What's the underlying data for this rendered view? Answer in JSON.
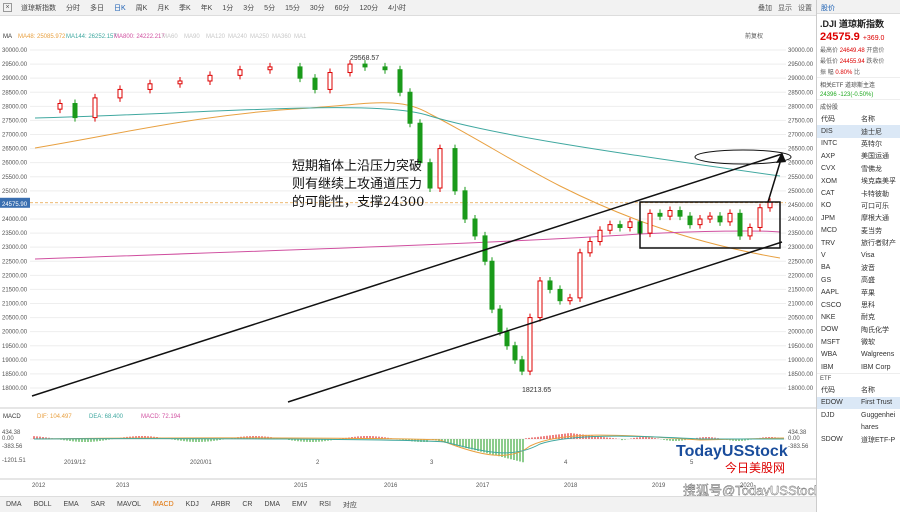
{
  "toolbar": {
    "close": "×",
    "tabs": [
      "道琼斯指数",
      "分时",
      "多日",
      "日K",
      "周K",
      "月K",
      "季K",
      "年K",
      "1分",
      "3分",
      "5分",
      "15分",
      "30分",
      "60分",
      "120分",
      "4小时"
    ],
    "active_tab": 3,
    "right": [
      "叠加",
      "显示",
      "设置"
    ]
  },
  "chart": {
    "ma_label": "MA",
    "ma_legend": [
      {
        "text": "MA48: 25085.972",
        "color": "#e8a040"
      },
      {
        "text": "MA144: 26252.157",
        "color": "#40a8a0"
      },
      {
        "text": "MA800: 24222.217",
        "color": "#d050a0"
      },
      {
        "text": "MA60",
        "color": "#c8c8c8"
      },
      {
        "text": "MA90",
        "color": "#c8c8c8"
      },
      {
        "text": "MA120",
        "color": "#c8c8c8"
      },
      {
        "text": "MA240",
        "color": "#c8c8c8"
      },
      {
        "text": "MA250",
        "color": "#c8c8c8"
      },
      {
        "text": "MA360",
        "color": "#c8c8c8"
      },
      {
        "text": "MA1",
        "color": "#c8c8c8"
      }
    ],
    "adjust_label": "前复权",
    "price_labels": [
      "30000.00",
      "29500.00",
      "29000.00",
      "28500.00",
      "28000.00",
      "27500.00",
      "27000.00",
      "26500.00",
      "26000.00",
      "25500.00",
      "25000.00",
      "24500.00",
      "24000.00",
      "23500.00",
      "23000.00",
      "22500.00",
      "22000.00",
      "21500.00",
      "21000.00",
      "20500.00",
      "20000.00",
      "19500.00",
      "19000.00",
      "18500.00",
      "18000.00"
    ],
    "current_price_tag": "24575.90",
    "high_label": "29568.57",
    "low_label": "18213.65",
    "annotation": [
      "短期箱体上沿压力突破",
      "则有继续上攻通道压力",
      "的可能性，支撑24300"
    ],
    "macd_legend": [
      {
        "text": "MACD",
        "color": "#333"
      },
      {
        "text": "DIF: 104.497",
        "color": "#e8a040"
      },
      {
        "text": "DEA: 68.400",
        "color": "#40a8a0"
      },
      {
        "text": "MACD: 72.194",
        "color": "#d050a0"
      }
    ],
    "macd_labels_left": [
      "434.38",
      "0.00",
      "-383.56",
      "-1201.51"
    ],
    "macd_labels_right": [
      "434.38",
      "0.00",
      "-383.56"
    ],
    "time_labels": [
      "2012",
      "2019/12",
      "2013",
      "2020/01",
      "2015",
      "2",
      "2016",
      "3",
      "2017",
      "4",
      "2018",
      "2019",
      "5",
      "2020"
    ],
    "watermark_logo": "TodayUSStock",
    "watermark_cn": "今日美股网",
    "watermark_bottom": "搜狐号@TodayUSStock"
  },
  "bottom": {
    "items": [
      "DMA",
      "BOLL",
      "EMA",
      "SAR",
      "MAVOL",
      "MACD",
      "KDJ",
      "ARBR",
      "CR",
      "DMA",
      "EMV",
      "RSI",
      "对应"
    ],
    "active": 5
  },
  "side": {
    "header": "股价",
    "symbol": ".DJI  道琼斯指数",
    "price": "24575.9",
    "change": "+369.0",
    "kv": [
      {
        "k": "最高价",
        "v": "24649.48",
        "k2": "开盘价"
      },
      {
        "k": "最低价",
        "v": "24455.94",
        "k2": "跌收价"
      },
      {
        "k": "振 幅",
        "v": "0.80%",
        "k2": "比"
      }
    ],
    "related": "相关ETF  道琼斯主连",
    "related_val": "24396",
    "related_chg": "-123(-0.50%)",
    "cons_title": "成份股",
    "cons_header": [
      "代码",
      "名称"
    ],
    "constituents": [
      [
        "DIS",
        "迪士尼"
      ],
      [
        "INTC",
        "英特尔"
      ],
      [
        "AXP",
        "美国运通"
      ],
      [
        "CVX",
        "雪佛龙"
      ],
      [
        "XOM",
        "埃克森美孚"
      ],
      [
        "CAT",
        "卡特彼勒"
      ],
      [
        "KO",
        "可口可乐"
      ],
      [
        "JPM",
        "摩根大通"
      ],
      [
        "MCD",
        "麦当劳"
      ],
      [
        "TRV",
        "旅行者财产"
      ],
      [
        "V",
        "Visa"
      ],
      [
        "BA",
        "波音"
      ],
      [
        "GS",
        "高盛"
      ],
      [
        "AAPL",
        "苹果"
      ],
      [
        "CSCO",
        "思科"
      ],
      [
        "NKE",
        "耐克"
      ],
      [
        "DOW",
        "陶氏化学"
      ],
      [
        "MSFT",
        "微软"
      ],
      [
        "WBA",
        "Walgreens"
      ],
      [
        "IBM",
        "IBM Corp"
      ]
    ],
    "etf_title": "ETF",
    "etf_header": [
      "代码",
      "名称"
    ],
    "etfs": [
      [
        "EDOW",
        "First Trust"
      ],
      [
        "DJD",
        "Guggenhei"
      ],
      [
        "",
        "hares"
      ],
      [
        "SDOW",
        "道琼ETF-P"
      ]
    ]
  }
}
